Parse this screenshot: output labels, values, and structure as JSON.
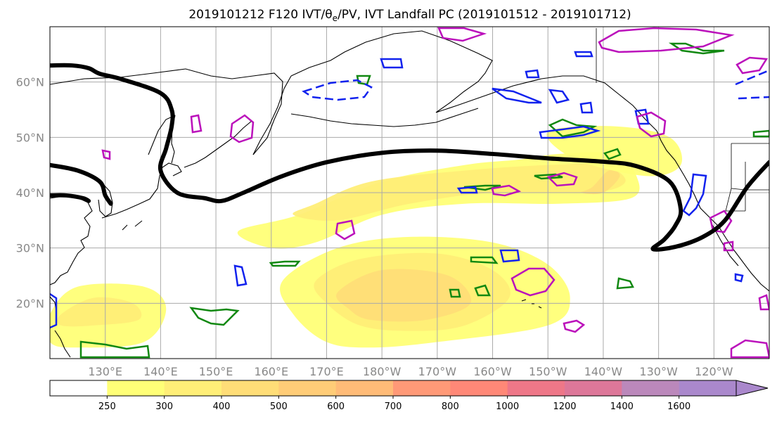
{
  "chart_data": {
    "type": "contour-map",
    "title": "2019101212 F120 IVT/θe/PV, IVT Landfall PC (2019101512 - 2019101712)",
    "title_parts": {
      "prefix": "2019101212 F120 IVT/",
      "theta": "θ",
      "sub": "e",
      "suffix": "/PV, IVT Landfall PC (2019101512 - 2019101712)"
    },
    "lon_range": [
      120,
      250
    ],
    "lat_range": [
      10,
      70
    ],
    "lat_ticks": [
      {
        "value": 20,
        "label": "20°N"
      },
      {
        "value": 30,
        "label": "30°N"
      },
      {
        "value": 40,
        "label": "40°N"
      },
      {
        "value": 50,
        "label": "50°N"
      },
      {
        "value": 60,
        "label": "60°N"
      }
    ],
    "lon_ticks": [
      {
        "value": 130,
        "label": "130°E"
      },
      {
        "value": 140,
        "label": "140°E"
      },
      {
        "value": 150,
        "label": "150°E"
      },
      {
        "value": 160,
        "label": "160°E"
      },
      {
        "value": 170,
        "label": "170°E"
      },
      {
        "value": 180,
        "label": "180°W"
      },
      {
        "value": 190,
        "label": "170°W"
      },
      {
        "value": 200,
        "label": "160°W"
      },
      {
        "value": 210,
        "label": "150°W"
      },
      {
        "value": 220,
        "label": "140°W"
      },
      {
        "value": 230,
        "label": "130°W"
      },
      {
        "value": 240,
        "label": "120°W"
      }
    ],
    "grid": true,
    "colorbar": {
      "orientation": "horizontal",
      "extend": "max",
      "levels": [
        250,
        300,
        400,
        500,
        600,
        700,
        800,
        1000,
        1200,
        1400,
        1600
      ],
      "labels": [
        "250",
        "300",
        "400",
        "500",
        "600",
        "700",
        "800",
        "1000",
        "1200",
        "1400",
        "1600"
      ],
      "colors": [
        "#ffffff",
        "#ffff77",
        "#ffee77",
        "#ffdd77",
        "#ffcc77",
        "#ffbb77",
        "#ff9977",
        "#ff8877",
        "#ee7788",
        "#dd7799",
        "#bb88bb",
        "#aa88cc"
      ]
    },
    "ivt_regions": [
      {
        "lon": [
          165,
          180,
          195,
          205,
          212,
          222,
          226,
          225,
          212,
          195,
          180,
          168,
          160,
          154
        ],
        "lat": [
          36,
          42,
          45,
          46,
          47,
          47,
          43,
          39,
          38,
          38,
          36,
          31,
          30,
          33
        ],
        "level": 250
      },
      {
        "lon": [
          168,
          178,
          195,
          210,
          220,
          224,
          218,
          200,
          185,
          172,
          164
        ],
        "lat": [
          38,
          42,
          44,
          45,
          45,
          42,
          40,
          40,
          38,
          35,
          36
        ],
        "level": 300
      },
      {
        "lon": [
          218,
          221,
          223,
          220,
          216
        ],
        "lat": [
          41,
          44,
          43,
          40,
          40
        ],
        "level": 400
      },
      {
        "lon": [
          162,
          172,
          185,
          200,
          210,
          214,
          210,
          190,
          178,
          170,
          164
        ],
        "lat": [
          24,
          30,
          32,
          31,
          27,
          21,
          16,
          13,
          12,
          13,
          18
        ],
        "level": 250
      },
      {
        "lon": [
          168,
          176,
          190,
          200,
          203,
          195,
          185,
          176,
          170
        ],
        "lat": [
          24,
          28,
          29,
          26,
          21,
          16,
          15,
          16,
          20
        ],
        "level": 300
      },
      {
        "lon": [
          172,
          180,
          192,
          196,
          188,
          178,
          174
        ],
        "lat": [
          22,
          26,
          25,
          20,
          17,
          17,
          19
        ],
        "level": 400
      },
      {
        "lon": [
          120,
          125,
          137,
          141,
          137,
          125,
          120
        ],
        "lat": [
          18,
          23,
          23,
          19,
          13,
          12,
          13
        ],
        "level": 250
      },
      {
        "lon": [
          122,
          128,
          135,
          136,
          128,
          122
        ],
        "lat": [
          18,
          21,
          20,
          17,
          16,
          16
        ],
        "level": 300
      },
      {
        "lon": [
          210,
          222,
          232,
          234,
          228,
          215
        ],
        "lat": [
          51,
          52,
          50,
          45,
          43,
          46
        ],
        "level": 250
      }
    ],
    "ivt_landfall_pc": [
      {
        "lon": [
          120,
          124,
          127,
          129,
          133,
          140,
          142,
          142,
          141,
          140,
          143,
          148,
          151,
          155,
          162,
          170,
          180,
          190,
          200,
          210,
          220,
          226,
          232,
          234,
          233,
          231,
          229,
          233,
          238,
          242,
          246,
          250
        ],
        "lat": [
          63,
          63,
          62.5,
          61.5,
          60.5,
          58,
          55,
          52,
          48,
          44,
          40,
          39,
          38.5,
          40,
          43,
          45.5,
          47.2,
          47.6,
          47,
          46.2,
          45.6,
          44.8,
          42,
          37,
          34,
          31.5,
          29.8,
          30.2,
          32,
          35,
          41,
          45.5
        ]
      },
      {
        "lon": [
          120,
          125,
          129,
          130,
          131
        ],
        "lat": [
          45,
          44,
          42,
          39.5,
          38
        ]
      },
      {
        "lon": [
          120,
          123,
          126,
          127
        ],
        "lat": [
          39.5,
          39.5,
          39,
          38.5
        ]
      }
    ]
  }
}
